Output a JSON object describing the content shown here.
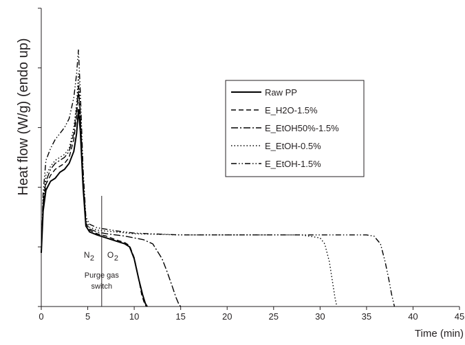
{
  "chart_data": {
    "type": "line",
    "title": "",
    "xlabel": "Time (min)",
    "ylabel": "Heat flow (W/g) (endo up)",
    "xlim": [
      0,
      45
    ],
    "x_ticks": [
      0,
      5,
      10,
      15,
      20,
      25,
      30,
      35,
      40,
      45
    ],
    "x_tick_labels": [
      "0",
      "5",
      "10",
      "15",
      "20",
      "25",
      "30",
      "35",
      "40",
      "45"
    ],
    "ylim": [
      0,
      5
    ],
    "y_ticks": [
      0,
      1,
      2,
      3,
      4,
      5
    ],
    "y_tick_labels_shown": false,
    "grid": false,
    "legend_position": "upper-right",
    "series": [
      {
        "name": "Raw PP",
        "color": "#000000",
        "style": "solid",
        "x": [
          0,
          0.2,
          0.5,
          1,
          1.5,
          2,
          2.5,
          3,
          3.5,
          3.8,
          4.0,
          4.2,
          4.5,
          4.8,
          5.2,
          6,
          7,
          8,
          9,
          9.5,
          10,
          10.5,
          10.9,
          11.2,
          11.4
        ],
        "y": [
          0.9,
          1.6,
          1.95,
          2.1,
          2.15,
          2.25,
          2.3,
          2.4,
          2.6,
          2.9,
          3.3,
          2.95,
          2.0,
          1.35,
          1.25,
          1.2,
          1.15,
          1.1,
          1.05,
          1.0,
          0.8,
          0.45,
          0.2,
          0.05,
          0.0
        ]
      },
      {
        "name": "E_H2O-1.5%",
        "color": "#000000",
        "style": "dashed",
        "x": [
          0,
          0.2,
          0.5,
          1,
          1.5,
          2,
          2.5,
          3,
          3.5,
          3.8,
          4.0,
          4.2,
          4.5,
          4.8,
          5.2,
          6,
          7,
          8,
          9,
          9.5,
          10,
          10.5,
          10.8,
          11.1,
          11.3
        ],
        "y": [
          0.9,
          1.7,
          2.05,
          2.2,
          2.3,
          2.35,
          2.4,
          2.5,
          2.8,
          3.2,
          3.6,
          3.1,
          2.1,
          1.4,
          1.28,
          1.22,
          1.18,
          1.12,
          1.07,
          1.02,
          0.82,
          0.45,
          0.2,
          0.05,
          0.0
        ]
      },
      {
        "name": "E_EtOH50%-1.5%",
        "color": "#000000",
        "style": "dash-dot",
        "x": [
          0,
          0.2,
          0.5,
          1,
          1.5,
          2,
          2.5,
          3,
          3.5,
          3.8,
          4.0,
          4.2,
          4.5,
          4.8,
          5.2,
          6,
          7,
          8,
          9,
          10,
          11,
          12,
          13,
          13.5,
          14,
          14.5,
          14.8,
          15.0
        ],
        "y": [
          0.9,
          1.75,
          2.1,
          2.3,
          2.4,
          2.45,
          2.5,
          2.6,
          2.9,
          3.3,
          3.7,
          3.2,
          2.1,
          1.4,
          1.3,
          1.25,
          1.22,
          1.2,
          1.18,
          1.15,
          1.12,
          1.05,
          0.8,
          0.6,
          0.38,
          0.15,
          0.04,
          0.0
        ]
      },
      {
        "name": "E_EtOH-0.5%",
        "color": "#000000",
        "style": "dotted",
        "x": [
          0,
          0.2,
          0.5,
          1,
          1.5,
          2,
          2.5,
          3,
          3.5,
          3.8,
          4.0,
          4.2,
          4.5,
          4.8,
          5.2,
          6,
          8,
          10,
          15,
          20,
          25,
          28,
          30,
          30.5,
          31,
          31.3,
          31.6,
          31.8
        ],
        "y": [
          0.9,
          1.8,
          2.2,
          2.35,
          2.45,
          2.5,
          2.55,
          2.65,
          3.0,
          3.4,
          3.9,
          3.3,
          2.2,
          1.45,
          1.33,
          1.28,
          1.25,
          1.22,
          1.2,
          1.2,
          1.2,
          1.2,
          1.15,
          1.05,
          0.75,
          0.45,
          0.15,
          0.0
        ]
      },
      {
        "name": "E_EtOH-1.5%",
        "color": "#000000",
        "style": "dash-dot-dot",
        "x": [
          0,
          0.2,
          0.5,
          1,
          1.5,
          2,
          2.5,
          3,
          3.5,
          3.8,
          4.0,
          4.2,
          4.5,
          4.8,
          5.2,
          6,
          8,
          10,
          15,
          20,
          25,
          30,
          33,
          35,
          35.8,
          36.5,
          37.0,
          37.4,
          37.7,
          38.0
        ],
        "y": [
          0.9,
          1.9,
          2.45,
          2.65,
          2.8,
          2.9,
          3.0,
          3.15,
          3.5,
          3.9,
          4.3,
          3.6,
          2.3,
          1.5,
          1.38,
          1.32,
          1.27,
          1.23,
          1.2,
          1.2,
          1.2,
          1.2,
          1.2,
          1.2,
          1.18,
          1.05,
          0.75,
          0.45,
          0.2,
          0.0
        ]
      }
    ],
    "annotations": {
      "vline_x": 6.5,
      "left_label_main": "N",
      "left_label_sub": "2",
      "right_label_main": "O",
      "right_label_sub": "2",
      "caption_line1": "Purge gas",
      "caption_line2": "switch"
    }
  }
}
